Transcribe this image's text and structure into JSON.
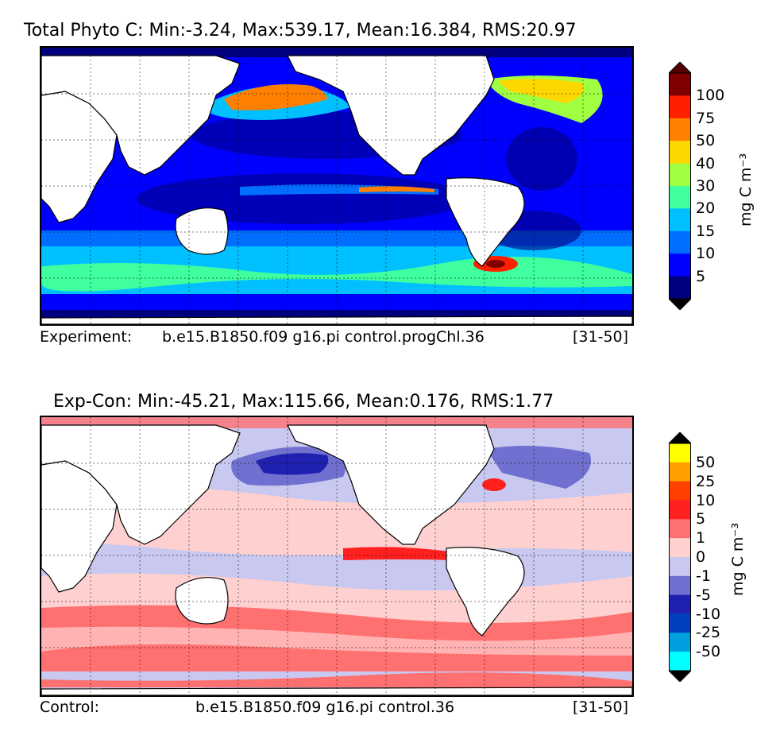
{
  "panels": [
    {
      "title": "Total Phyto C: Min:-3.24, Max:539.17, Mean:16.384, RMS:20.97",
      "footer_left": "Experiment:",
      "footer_mid": "b.e15.B1850.f09 g16.pi control.progChl.36",
      "footer_right": "[31-50]",
      "colorbar": {
        "unit": "mg C m⁻³",
        "ticks": [
          "100",
          "75",
          "50",
          "40",
          "30",
          "20",
          "15",
          "10",
          "5"
        ],
        "colors": [
          "#7f0000",
          "#ff2000",
          "#ff7f00",
          "#ffd700",
          "#a0ff40",
          "#40ff9f",
          "#00c0ff",
          "#006fff",
          "#0000ff",
          "#00007f"
        ],
        "top_arrow": "#550000",
        "bottom_arrow": "#000000"
      }
    },
    {
      "title": "Exp-Con: Min:-45.21, Max:115.66, Mean:0.176, RMS:1.77",
      "footer_left": "Control:",
      "footer_mid": "b.e15.B1850.f09 g16.pi control.36",
      "footer_right": "[31-50]",
      "colorbar": {
        "unit": "mg C m⁻³",
        "ticks": [
          "50",
          "25",
          "10",
          "5",
          "1",
          "0",
          "-1",
          "-5",
          "-10",
          "-25",
          "-50"
        ],
        "colors": [
          "#ffff00",
          "#ffa000",
          "#ff4000",
          "#ff2020",
          "#ff7070",
          "#ffd0d0",
          "#c8c8f0",
          "#7070d0",
          "#2020b0",
          "#0040c0",
          "#00a0e0",
          "#00ffff"
        ],
        "top_arrow": "#000000",
        "bottom_arrow": "#000000"
      }
    }
  ]
}
